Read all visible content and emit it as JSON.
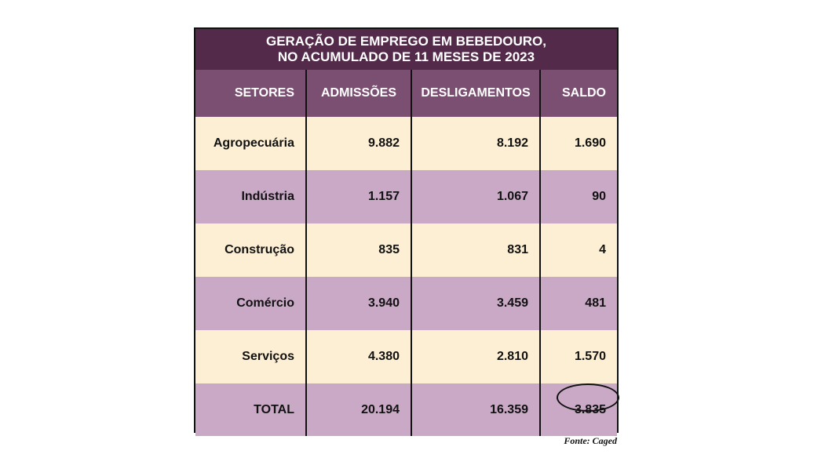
{
  "title": {
    "line1": "GERAÇÃO DE EMPREGO EM BEBEDOURO,",
    "line2": "NO ACUMULADO DE 11 MESES DE 2023"
  },
  "headers": [
    "SETORES",
    "ADMISSÕES",
    "DESLIGAMENTOS",
    "SALDO"
  ],
  "rows": [
    {
      "setor": "Agropecuária",
      "admissoes": "9.882",
      "desligamentos": "8.192",
      "saldo": "1.690"
    },
    {
      "setor": "Indústria",
      "admissoes": "1.157",
      "desligamentos": "1.067",
      "saldo": "90"
    },
    {
      "setor": "Construção",
      "admissoes": "835",
      "desligamentos": "831",
      "saldo": "4"
    },
    {
      "setor": "Comércio",
      "admissoes": "3.940",
      "desligamentos": "3.459",
      "saldo": "481"
    },
    {
      "setor": "Serviços",
      "admissoes": "4.380",
      "desligamentos": "2.810",
      "saldo": "1.570"
    }
  ],
  "total": {
    "setor": "TOTAL",
    "admissoes": "20.194",
    "desligamentos": "16.359",
    "saldo": "3.835"
  },
  "source": "Fonte: Caged",
  "colors": {
    "title_bg": "#542a4b",
    "header_bg": "#7b4f72",
    "row_cream": "#fdefd3",
    "row_lilac": "#c9a9c6"
  }
}
